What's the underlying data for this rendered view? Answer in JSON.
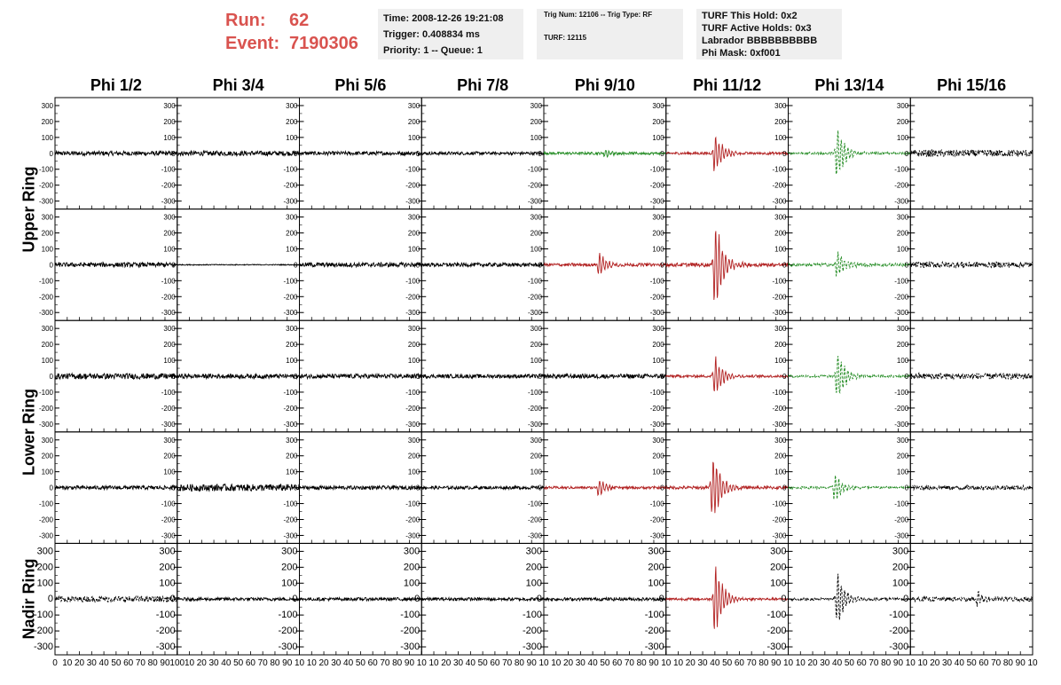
{
  "header": {
    "run_label": "Run:",
    "run_value": "62",
    "event_label": "Event:",
    "event_value": "7190306"
  },
  "info_box_1": {
    "time": "Time: 2008-12-26 19:21:08",
    "trigger": "Trigger: 0.408834 ms",
    "priority": "Priority: 1 -- Queue: 1"
  },
  "info_box_2": {
    "trig": "Trig Num: 12106 -- Trig Type: RF",
    "turf": "TURF: 12115"
  },
  "info_box_3": {
    "hold": "TURF This Hold: 0x2",
    "active": "TURF Active Holds: 0x3",
    "labrador": "Labrador BBBBBBBBBB",
    "mask": "Phi Mask: 0xf001"
  },
  "colors": {
    "run_text": "#d9534f",
    "trace_normal": "#000000",
    "trace_red": "#b22222",
    "trace_green": "#228b22"
  },
  "chart_data": {
    "type": "line",
    "columns": [
      "Phi 1/2",
      "Phi 3/4",
      "Phi 5/6",
      "Phi 7/8",
      "Phi 9/10",
      "Phi 11/12",
      "Phi 13/14",
      "Phi 15/16"
    ],
    "rows": [
      "Upper Ring",
      "Upper Ring",
      "Lower Ring",
      "Lower Ring",
      "Nadir Ring"
    ],
    "row_labels": [
      {
        "text": "Upper Ring",
        "rows": [
          0,
          1
        ]
      },
      {
        "text": "Lower Ring",
        "rows": [
          2,
          3
        ]
      },
      {
        "text": "Nadir Ring",
        "rows": [
          4
        ]
      }
    ],
    "xlim": [
      0,
      100
    ],
    "ylim": [
      -350,
      350
    ],
    "y_ticks": [
      -300,
      -200,
      -100,
      0,
      100,
      200,
      300
    ],
    "x_tick_labels": [
      "0",
      "10",
      "20",
      "30",
      "40",
      "50",
      "60",
      "70",
      "80",
      "90",
      "100"
    ],
    "x_tick_labels_panel": [
      "10",
      "20",
      "30",
      "40",
      "50",
      "60",
      "70",
      "80",
      "90",
      "10"
    ],
    "panels": [
      [
        {
          "color": "#000000",
          "style": "solid",
          "pulse_center": null,
          "pulse_amp": 0,
          "noise": 14
        },
        {
          "color": "#000000",
          "style": "solid",
          "pulse_center": null,
          "pulse_amp": 0,
          "noise": 15
        },
        {
          "color": "#000000",
          "style": "solid",
          "pulse_center": null,
          "pulse_amp": 0,
          "noise": 12
        },
        {
          "color": "#000000",
          "style": "solid",
          "pulse_center": null,
          "pulse_amp": 0,
          "noise": 10
        },
        {
          "color": "#228b22",
          "style": "solid",
          "pulse_center": 50,
          "pulse_amp": 25,
          "noise": 8
        },
        {
          "color": "#b22222",
          "style": "solid",
          "pulse_center": 40,
          "pulse_amp": 150,
          "noise": 8
        },
        {
          "color": "#228b22",
          "style": "dashed",
          "pulse_center": 40,
          "pulse_amp": 190,
          "noise": 8
        },
        {
          "color": "#000000",
          "style": "dashed",
          "pulse_center": null,
          "pulse_amp": 0,
          "noise": 22
        }
      ],
      [
        {
          "color": "#000000",
          "style": "solid",
          "pulse_center": null,
          "pulse_amp": 0,
          "noise": 14
        },
        {
          "color": "#000000",
          "style": "solid",
          "pulse_center": null,
          "pulse_amp": 0,
          "noise": 3
        },
        {
          "color": "#000000",
          "style": "solid",
          "pulse_center": null,
          "pulse_amp": 0,
          "noise": 14
        },
        {
          "color": "#000000",
          "style": "solid",
          "pulse_center": null,
          "pulse_amp": 0,
          "noise": 12
        },
        {
          "color": "#b22222",
          "style": "solid",
          "pulse_center": 45,
          "pulse_amp": 80,
          "noise": 10
        },
        {
          "color": "#b22222",
          "style": "solid",
          "pulse_center": 40,
          "pulse_amp": 340,
          "noise": 12
        },
        {
          "color": "#228b22",
          "style": "dashed",
          "pulse_center": 40,
          "pulse_amp": 100,
          "noise": 10
        },
        {
          "color": "#000000",
          "style": "dashed",
          "pulse_center": null,
          "pulse_amp": 0,
          "noise": 18
        }
      ],
      [
        {
          "color": "#000000",
          "style": "solid",
          "pulse_center": null,
          "pulse_amp": 0,
          "noise": 18
        },
        {
          "color": "#000000",
          "style": "solid",
          "pulse_center": null,
          "pulse_amp": 0,
          "noise": 14
        },
        {
          "color": "#000000",
          "style": "solid",
          "pulse_center": null,
          "pulse_amp": 0,
          "noise": 14
        },
        {
          "color": "#000000",
          "style": "solid",
          "pulse_center": null,
          "pulse_amp": 0,
          "noise": 12
        },
        {
          "color": "#000000",
          "style": "solid",
          "pulse_center": null,
          "pulse_amp": 0,
          "noise": 14
        },
        {
          "color": "#b22222",
          "style": "solid",
          "pulse_center": 40,
          "pulse_amp": 160,
          "noise": 8
        },
        {
          "color": "#228b22",
          "style": "dashed",
          "pulse_center": 40,
          "pulse_amp": 200,
          "noise": 8
        },
        {
          "color": "#000000",
          "style": "dashed",
          "pulse_center": null,
          "pulse_amp": 0,
          "noise": 20
        }
      ],
      [
        {
          "color": "#000000",
          "style": "solid",
          "pulse_center": null,
          "pulse_amp": 0,
          "noise": 12
        },
        {
          "color": "#000000",
          "style": "solid",
          "pulse_center": null,
          "pulse_amp": 0,
          "noise": 22
        },
        {
          "color": "#000000",
          "style": "solid",
          "pulse_center": null,
          "pulse_amp": 0,
          "noise": 12
        },
        {
          "color": "#000000",
          "style": "solid",
          "pulse_center": null,
          "pulse_amp": 0,
          "noise": 10
        },
        {
          "color": "#b22222",
          "style": "solid",
          "pulse_center": 45,
          "pulse_amp": 60,
          "noise": 8
        },
        {
          "color": "#b22222",
          "style": "solid",
          "pulse_center": 38,
          "pulse_amp": 270,
          "noise": 10
        },
        {
          "color": "#228b22",
          "style": "dashed",
          "pulse_center": 38,
          "pulse_amp": 100,
          "noise": 8
        },
        {
          "color": "#000000",
          "style": "dashed",
          "pulse_center": null,
          "pulse_amp": 0,
          "noise": 14
        }
      ],
      [
        {
          "color": "#000000",
          "style": "dashed",
          "pulse_center": null,
          "pulse_amp": 0,
          "noise": 18
        },
        {
          "color": "#000000",
          "style": "solid",
          "pulse_center": null,
          "pulse_amp": 0,
          "noise": 10
        },
        {
          "color": "#000000",
          "style": "solid",
          "pulse_center": null,
          "pulse_amp": 0,
          "noise": 10
        },
        {
          "color": "#000000",
          "style": "solid",
          "pulse_center": null,
          "pulse_amp": 0,
          "noise": 10
        },
        {
          "color": "#000000",
          "style": "solid",
          "pulse_center": null,
          "pulse_amp": 0,
          "noise": 10
        },
        {
          "color": "#b22222",
          "style": "solid",
          "pulse_center": 40,
          "pulse_amp": 270,
          "noise": 8
        },
        {
          "color": "#000000",
          "style": "dashed",
          "pulse_center": 40,
          "pulse_amp": 190,
          "noise": 8
        },
        {
          "color": "#000000",
          "style": "dashed",
          "pulse_center": 55,
          "pulse_amp": 50,
          "noise": 14
        }
      ]
    ]
  }
}
